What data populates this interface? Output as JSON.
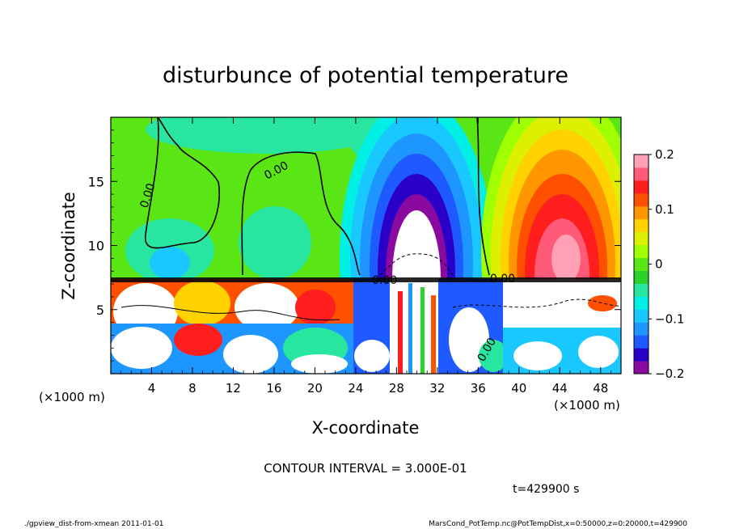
{
  "chart_data": {
    "type": "heatmap",
    "title": "disturbunce of potential temperature",
    "xlabel": "X-coordinate",
    "ylabel": "Z-coordinate",
    "x_unit_left": "(×1000 m)",
    "x_unit_right": "(×1000 m)",
    "xlim": [
      0,
      50
    ],
    "ylim": [
      0,
      20
    ],
    "x_ticks": [
      "4",
      "8",
      "12",
      "16",
      "20",
      "24",
      "28",
      "32",
      "36",
      "40",
      "44",
      "48"
    ],
    "x_tick_values": [
      4,
      8,
      12,
      16,
      20,
      24,
      28,
      32,
      36,
      40,
      44,
      48
    ],
    "y_ticks": [
      "5",
      "10",
      "15"
    ],
    "y_tick_values": [
      5,
      10,
      15
    ],
    "colorbar": {
      "min": -0.2,
      "max": 0.2,
      "tick_labels": [
        "0.2",
        "0.1",
        "0",
        "−0.1",
        "−0.2"
      ],
      "tick_values": [
        0.2,
        0.1,
        0,
        -0.1,
        -0.2
      ],
      "colors": [
        "#8a0aa0",
        "#2a00c8",
        "#1e5aff",
        "#1e96ff",
        "#19c8ff",
        "#00f0e6",
        "#28e6a0",
        "#2ad22a",
        "#5ae614",
        "#a0ff00",
        "#dcf000",
        "#ffd200",
        "#ff9600",
        "#ff5000",
        "#ff1e1e",
        "#ff5a78",
        "#ffa0b4"
      ]
    },
    "contour_labels": [
      "0.00",
      "0.00",
      "0.00",
      "0.00",
      "0.00"
    ],
    "contour_interval_text": "CONTOUR INTERVAL = 3.000E-01",
    "time_text": "t=429900 s"
  },
  "footer": {
    "left": "./gpview_dist-from-xmean  2011-01-01",
    "right": "MarsCond_PotTemp.nc@PotTempDist,x=0:50000,z=0:20000,t=429900"
  }
}
